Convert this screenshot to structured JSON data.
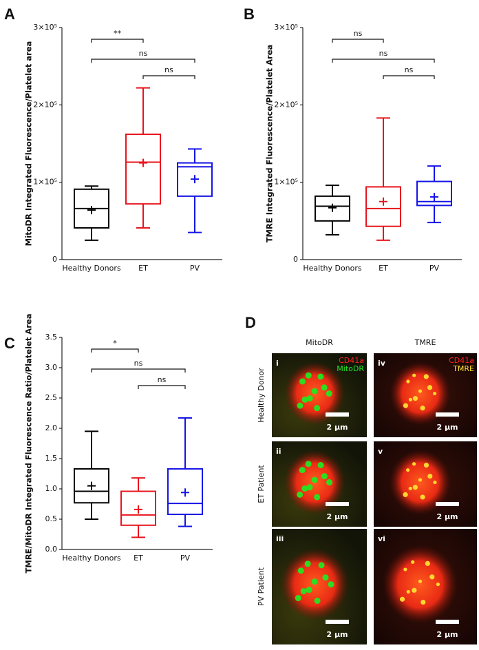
{
  "chart_data": [
    {
      "type": "box",
      "panel": "A",
      "ylabel": "MitoDR Integrated Fluorescence/Platelet area",
      "categories": [
        "Healthy Donors",
        "ET",
        "PV"
      ],
      "boxes": [
        {
          "color": "#000000",
          "low": 25000,
          "q1": 41000,
          "median": 66000,
          "q3": 91000,
          "high": 95000,
          "mean": 64000
        },
        {
          "color": "#e8141c",
          "low": 41000,
          "q1": 72000,
          "median": 126000,
          "q3": 162000,
          "high": 222000,
          "mean": 125000
        },
        {
          "color": "#1414e6",
          "low": 35000,
          "q1": 82000,
          "median": 120000,
          "q3": 125000,
          "high": 143000,
          "mean": 104000
        }
      ],
      "ylim": [
        0,
        300000
      ],
      "yticks": [
        0,
        {
          "value": 100000,
          "label": "1×10⁵"
        },
        {
          "value": 200000,
          "label": "2×10⁵"
        },
        {
          "value": 300000,
          "label": "3×10⁵"
        }
      ],
      "comparisons": [
        {
          "label": "**",
          "from": 0,
          "to": 1
        },
        {
          "label": "ns",
          "from": 0,
          "to": 2
        },
        {
          "label": "ns",
          "from": 1,
          "to": 2
        }
      ]
    },
    {
      "type": "box",
      "panel": "B",
      "ylabel": "TMRE Integrated Fluorescence/Platelet Area",
      "categories": [
        "Healthy Donors",
        "ET",
        "PV"
      ],
      "boxes": [
        {
          "color": "#000000",
          "low": 32000,
          "q1": 50000,
          "median": 69000,
          "q3": 82000,
          "high": 96000,
          "mean": 67000
        },
        {
          "color": "#e8141c",
          "low": 25000,
          "q1": 43000,
          "median": 66000,
          "q3": 94000,
          "high": 183000,
          "mean": 75000
        },
        {
          "color": "#1414e6",
          "low": 48000,
          "q1": 70000,
          "median": 75000,
          "q3": 101000,
          "high": 121000,
          "mean": 81000
        }
      ],
      "ylim": [
        0,
        300000
      ],
      "yticks": [
        0,
        {
          "value": 100000,
          "label": "1×10⁵"
        },
        {
          "value": 200000,
          "label": "2×10⁵"
        },
        {
          "value": 300000,
          "label": "3×10⁵"
        }
      ],
      "comparisons": [
        {
          "label": "ns",
          "from": 0,
          "to": 1
        },
        {
          "label": "ns",
          "from": 0,
          "to": 2
        },
        {
          "label": "ns",
          "from": 1,
          "to": 2
        }
      ]
    },
    {
      "type": "box",
      "panel": "C",
      "ylabel": "TMRE/MitoDR Integrated Fluorescence Ratio/Platelet Area",
      "categories": [
        "Healthy Donors",
        "ET",
        "PV"
      ],
      "boxes": [
        {
          "color": "#000000",
          "low": 0.5,
          "q1": 0.77,
          "median": 0.96,
          "q3": 1.33,
          "high": 1.95,
          "mean": 1.05
        },
        {
          "color": "#e8141c",
          "low": 0.2,
          "q1": 0.4,
          "median": 0.57,
          "q3": 0.96,
          "high": 1.18,
          "mean": 0.66
        },
        {
          "color": "#1414e6",
          "low": 0.38,
          "q1": 0.58,
          "median": 0.76,
          "q3": 1.33,
          "high": 2.17,
          "mean": 0.94
        }
      ],
      "ylim": [
        0,
        3.5
      ],
      "yticks": [
        {
          "value": 0,
          "label": "0.0"
        },
        0.5,
        {
          "value": 1,
          "label": "1.0"
        },
        1.5,
        {
          "value": 2,
          "label": "2.0"
        },
        2.5,
        {
          "value": 3,
          "label": "3.0"
        },
        3.5
      ],
      "comparisons": [
        {
          "label": "*",
          "from": 0,
          "to": 1
        },
        {
          "label": "ns",
          "from": 0,
          "to": 2
        },
        {
          "label": "ns",
          "from": 1,
          "to": 2
        }
      ]
    }
  ],
  "panel_d": {
    "letter": "D",
    "columns": [
      "MitoDR",
      "TMRE"
    ],
    "rows": [
      "Healthy Donor",
      "ET Patient",
      "PV Patient"
    ],
    "images": [
      {
        "label": "i",
        "legend": [
          "CD41a",
          "MitoDR"
        ],
        "scale": "2 µm"
      },
      {
        "label": "iv",
        "legend": [
          "CD41a",
          "TMRE"
        ],
        "scale": "2 µm"
      },
      {
        "label": "ii",
        "scale": "2 µm"
      },
      {
        "label": "v",
        "scale": "2 µm"
      },
      {
        "label": "iii",
        "scale": "2 µm"
      },
      {
        "label": "vi",
        "scale": "2 µm"
      }
    ]
  }
}
